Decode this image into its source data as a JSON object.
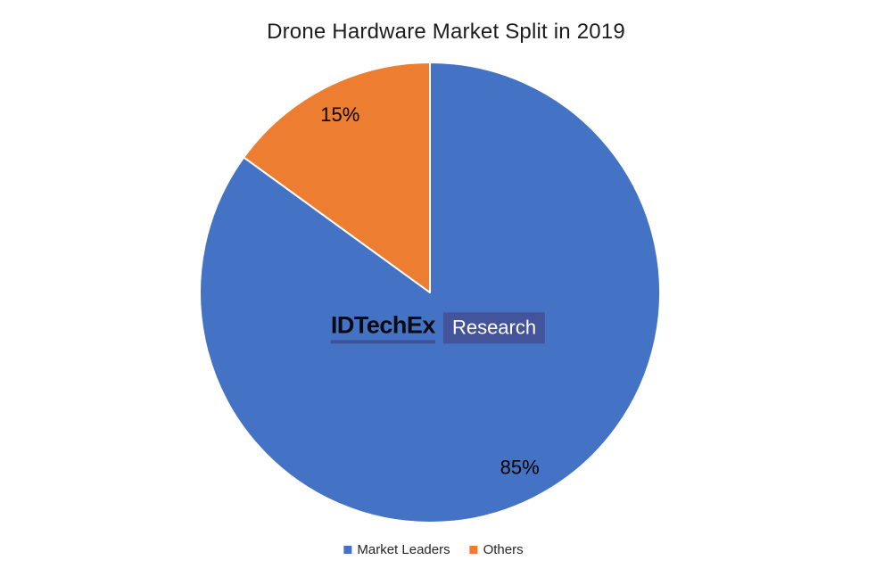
{
  "chart_data": {
    "type": "pie",
    "title": "Drone Hardware Market Split in 2019",
    "categories": [
      "Market Leaders",
      "Others"
    ],
    "values": [
      85,
      15
    ],
    "data_labels": [
      "85%",
      "15%"
    ],
    "colors": [
      "#4472C4",
      "#ED7D31"
    ],
    "start_angle_deg": 0,
    "direction": "clockwise",
    "legend_position": "bottom",
    "data_label_color": "#000000",
    "background": "#FFFFFF"
  },
  "watermark": {
    "brand": "IDTechEx",
    "suffix": "Research",
    "brand_text_color": "#0A0A12",
    "underline_color": "#3E5296",
    "box_color": "#43549B",
    "suffix_text_color": "#FFFFFF"
  },
  "legend": {
    "items": [
      {
        "label": "Market Leaders",
        "color": "#4472C4"
      },
      {
        "label": "Others",
        "color": "#ED7D31"
      }
    ]
  }
}
